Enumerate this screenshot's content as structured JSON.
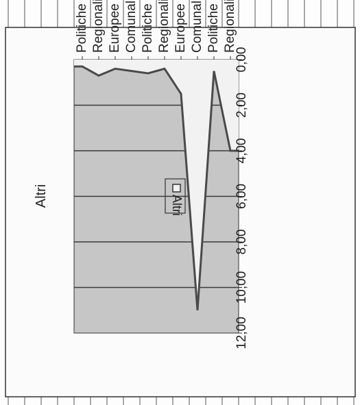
{
  "chart_data": {
    "type": "area",
    "title": "Altri",
    "categories": [
      "Regionali",
      "Politiche",
      "Comunali",
      "Europee",
      "Regionali",
      "Politiche",
      "Comunali",
      "Europee",
      "Regionali",
      "Politiche"
    ],
    "series": [
      {
        "name": "Altri",
        "values": [
          4.0,
          0.5,
          11.0,
          1.5,
          0.4,
          0.6,
          0.5,
          0.4,
          0.7,
          0.3
        ]
      }
    ],
    "y_ticks": [
      "0,00",
      "2,00",
      "4,00",
      "6,00",
      "8,00",
      "10,00",
      "12,00"
    ],
    "ylim": [
      0,
      12
    ],
    "grid": true,
    "legend": "right",
    "orientation": "rotated-180",
    "colors": {
      "plot_bg": "#c6c6c6",
      "area_fill": "#f2f2f2",
      "line": "#4a4a4a",
      "grid": "#3a3a3a",
      "frame": "#333333",
      "page_grid": "#555555"
    }
  }
}
